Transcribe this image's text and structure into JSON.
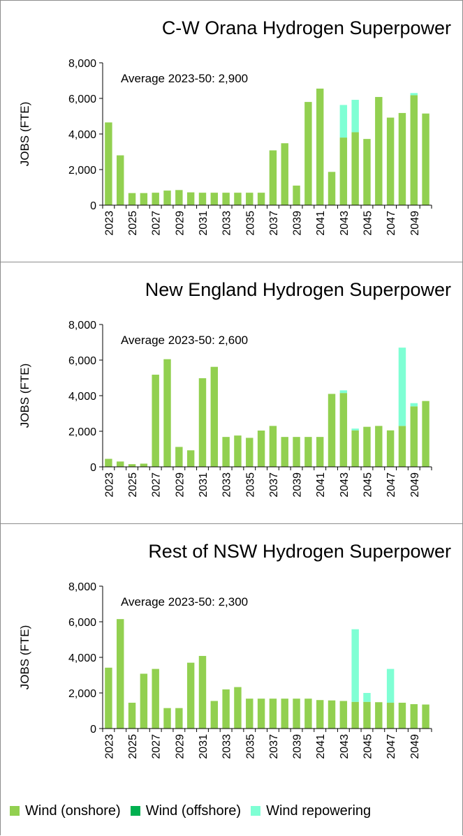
{
  "legend": [
    {
      "name": "Wind (onshore)",
      "color": "#92D050"
    },
    {
      "name": "Wind (offshore)",
      "color": "#00B050"
    },
    {
      "name": "Wind repowering",
      "color": "#7FFFD4"
    }
  ],
  "chart_data": [
    {
      "type": "bar",
      "stacked": true,
      "title": "C-W Orana Hydrogen Superpower",
      "ylabel": "JOBS (FTE)",
      "annotation": "Average 2023-50: 2,900",
      "ylim": [
        0,
        8000
      ],
      "yticks": [
        "0",
        "2,000",
        "4,000",
        "6,000",
        "8,000"
      ],
      "categories": [
        2023,
        2024,
        2025,
        2026,
        2027,
        2028,
        2029,
        2030,
        2031,
        2032,
        2033,
        2034,
        2035,
        2036,
        2037,
        2038,
        2039,
        2040,
        2041,
        2042,
        2043,
        2044,
        2045,
        2046,
        2047,
        2048,
        2049,
        2050
      ],
      "xticks": [
        "2023",
        "2025",
        "2027",
        "2029",
        "2031",
        "2033",
        "2035",
        "2037",
        "2039",
        "2041",
        "2043",
        "2045",
        "2047",
        "2049"
      ],
      "series": [
        {
          "name": "Wind (onshore)",
          "color": "#92D050",
          "values": [
            4650,
            2800,
            680,
            680,
            700,
            820,
            850,
            720,
            700,
            700,
            700,
            700,
            700,
            700,
            3080,
            3480,
            1100,
            5800,
            6550,
            1870,
            3800,
            4100,
            3720,
            6080,
            4920,
            5180,
            6180,
            5150
          ]
        },
        {
          "name": "Wind (offshore)",
          "color": "#00B050",
          "values": [
            0,
            0,
            0,
            0,
            0,
            0,
            0,
            0,
            0,
            0,
            0,
            0,
            0,
            0,
            0,
            0,
            0,
            0,
            0,
            0,
            0,
            0,
            0,
            0,
            0,
            0,
            0,
            0
          ]
        },
        {
          "name": "Wind repowering",
          "color": "#7FFFD4",
          "values": [
            0,
            0,
            0,
            0,
            0,
            0,
            0,
            0,
            0,
            0,
            0,
            0,
            0,
            0,
            0,
            0,
            0,
            0,
            0,
            0,
            1830,
            1820,
            0,
            0,
            0,
            0,
            120,
            0
          ]
        }
      ]
    },
    {
      "type": "bar",
      "stacked": true,
      "title": "New England Hydrogen Superpower",
      "ylabel": "JOBS (FTE)",
      "annotation": "Average 2023-50: 2,600",
      "ylim": [
        0,
        8000
      ],
      "yticks": [
        "0",
        "2,000",
        "4,000",
        "6,000",
        "8,000"
      ],
      "categories": [
        2023,
        2024,
        2025,
        2026,
        2027,
        2028,
        2029,
        2030,
        2031,
        2032,
        2033,
        2034,
        2035,
        2036,
        2037,
        2038,
        2039,
        2040,
        2041,
        2042,
        2043,
        2044,
        2045,
        2046,
        2047,
        2048,
        2049,
        2050
      ],
      "xticks": [
        "2023",
        "2025",
        "2027",
        "2029",
        "2031",
        "2033",
        "2035",
        "2037",
        "2039",
        "2041",
        "2043",
        "2045",
        "2047",
        "2049"
      ],
      "series": [
        {
          "name": "Wind (onshore)",
          "color": "#92D050",
          "values": [
            450,
            300,
            150,
            180,
            5180,
            6050,
            1120,
            930,
            4980,
            5620,
            1680,
            1760,
            1630,
            2040,
            2300,
            1680,
            1680,
            1680,
            1680,
            4100,
            4150,
            2050,
            2250,
            2300,
            2050,
            2300,
            3400,
            3700
          ]
        },
        {
          "name": "Wind (offshore)",
          "color": "#00B050",
          "values": [
            0,
            0,
            0,
            0,
            0,
            0,
            0,
            0,
            0,
            0,
            0,
            0,
            0,
            0,
            0,
            0,
            0,
            0,
            0,
            0,
            0,
            0,
            0,
            0,
            0,
            0,
            0,
            0
          ]
        },
        {
          "name": "Wind repowering",
          "color": "#7FFFD4",
          "values": [
            0,
            0,
            0,
            0,
            0,
            0,
            0,
            0,
            0,
            0,
            0,
            0,
            0,
            0,
            0,
            0,
            0,
            0,
            0,
            0,
            150,
            100,
            0,
            0,
            0,
            4400,
            180,
            0
          ]
        }
      ]
    },
    {
      "type": "bar",
      "stacked": true,
      "title": "Rest of NSW Hydrogen Superpower",
      "ylabel": "JOBS (FTE)",
      "annotation": "Average 2023-50: 2,300",
      "ylim": [
        0,
        8000
      ],
      "yticks": [
        "0",
        "2,000",
        "4,000",
        "6,000",
        "8,000"
      ],
      "categories": [
        2023,
        2024,
        2025,
        2026,
        2027,
        2028,
        2029,
        2030,
        2031,
        2032,
        2033,
        2034,
        2035,
        2036,
        2037,
        2038,
        2039,
        2040,
        2041,
        2042,
        2043,
        2044,
        2045,
        2046,
        2047,
        2048,
        2049,
        2050
      ],
      "xticks": [
        "2023",
        "2025",
        "2027",
        "2029",
        "2031",
        "2033",
        "2035",
        "2037",
        "2039",
        "2041",
        "2043",
        "2045",
        "2047",
        "2049"
      ],
      "series": [
        {
          "name": "Wind (onshore)",
          "color": "#92D050",
          "values": [
            3420,
            6150,
            1450,
            3080,
            3350,
            1150,
            1150,
            3700,
            4080,
            1550,
            2200,
            2330,
            1680,
            1680,
            1680,
            1680,
            1680,
            1680,
            1600,
            1580,
            1550,
            1500,
            1500,
            1480,
            1450,
            1450,
            1370,
            1350
          ]
        },
        {
          "name": "Wind (offshore)",
          "color": "#00B050",
          "values": [
            0,
            0,
            0,
            0,
            0,
            0,
            0,
            0,
            0,
            0,
            0,
            0,
            0,
            0,
            0,
            0,
            0,
            0,
            0,
            0,
            0,
            0,
            0,
            0,
            0,
            0,
            0,
            0
          ]
        },
        {
          "name": "Wind repowering",
          "color": "#7FFFD4",
          "values": [
            0,
            0,
            0,
            0,
            0,
            0,
            0,
            0,
            0,
            0,
            0,
            0,
            0,
            0,
            0,
            0,
            0,
            0,
            0,
            0,
            0,
            4080,
            500,
            0,
            1900,
            0,
            0,
            0
          ]
        }
      ]
    }
  ]
}
